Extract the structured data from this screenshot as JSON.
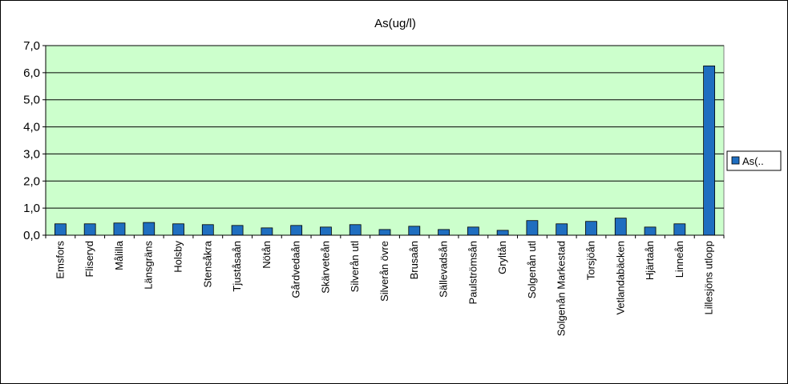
{
  "chart_data": {
    "type": "bar",
    "title": "As(ug/l)",
    "xlabel": "",
    "ylabel": "",
    "ylim": [
      0,
      7
    ],
    "ytick_step": 1,
    "ytick_format": "comma1",
    "grid": true,
    "legend_position": "right",
    "plot_background": "#ccffcc",
    "bar_color": "#1f6ec0",
    "categories": [
      "Emsfors",
      "Fliseryd",
      "Målilla",
      "Länsgräns",
      "Holsby",
      "Stensåkra",
      "Tjuståsaån",
      "Nötån",
      "Gårdvedaån",
      "Skärveteån",
      "Silverån utl",
      "Silverån övre",
      "Brusaån",
      "Sällevadsån",
      "Paulströmsån",
      "Gryltån",
      "Solgenån utl",
      "Solgenån Markestad",
      "Torsjöån",
      "Vetlandabäcken",
      "Hjärtaån",
      "Linneån",
      "Lillesjöns utlopp"
    ],
    "series": [
      {
        "name": "As(..",
        "values": [
          0.42,
          0.42,
          0.45,
          0.47,
          0.42,
          0.39,
          0.36,
          0.27,
          0.36,
          0.3,
          0.39,
          0.21,
          0.33,
          0.21,
          0.3,
          0.18,
          0.54,
          0.42,
          0.51,
          0.63,
          0.3,
          0.42,
          6.25
        ]
      }
    ]
  }
}
